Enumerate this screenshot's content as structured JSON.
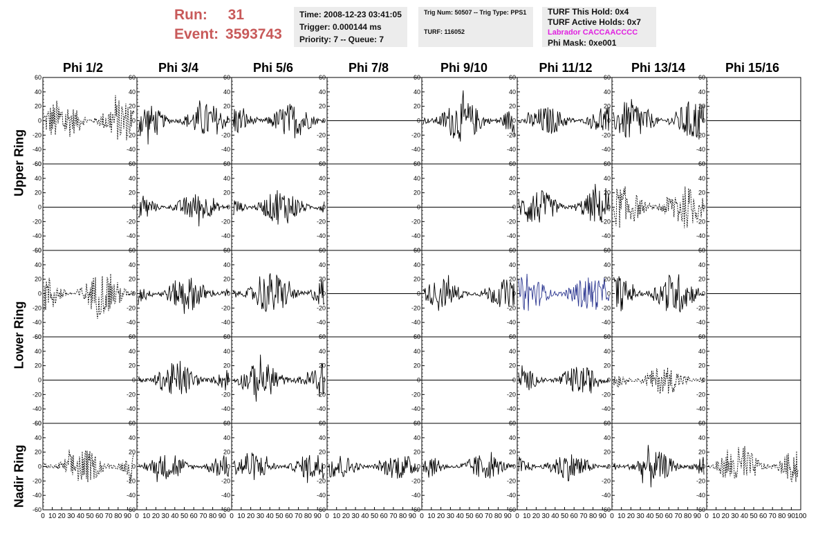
{
  "header": {
    "run_label": "Run:",
    "run_value": "31",
    "event_label": "Event:",
    "event_value": "3593743"
  },
  "info": {
    "time": "Time: 2008-12-23 03:41:05",
    "trigger": "Trigger: 0.000144 ms",
    "priority": "Priority: 7 -- Queue: 7",
    "trig_num": "Trig Num: 50507 -- Trig Type: PPS1",
    "turf": "TURF: 116052",
    "turf_this_hold": "TURF This Hold: 0x4",
    "turf_active_holds": "TURF Active Holds: 0x7",
    "labrador": "Labrador CACCAACCCC",
    "phi_mask": "Phi Mask: 0xe001"
  },
  "colors": {
    "header_red": "#c85a5a",
    "labrador_magenta": "#e020e0",
    "info_bg": "#ececec",
    "trace_black": "#000000",
    "trace_blue": "#2a3590"
  },
  "chart_data": {
    "type": "line",
    "columns": [
      "Phi 1/2",
      "Phi 3/4",
      "Phi 5/6",
      "Phi 7/8",
      "Phi 9/10",
      "Phi 11/12",
      "Phi 13/14",
      "Phi 15/16"
    ],
    "ring_labels": [
      "Upper Ring",
      "Lower Ring",
      "Nadir Ring"
    ],
    "ylim": [
      -60,
      60
    ],
    "yticks": [
      "60",
      "40",
      "20",
      "0",
      "-20",
      "-40",
      "-60"
    ],
    "xlim": [
      0,
      100
    ],
    "xticks": [
      "0",
      "10",
      "20",
      "30",
      "40",
      "50",
      "60",
      "70",
      "80",
      "90",
      "100"
    ],
    "panels": [
      [
        "dotted",
        "solid",
        "solid",
        "flat",
        "solid",
        "solid",
        "solid",
        "flat"
      ],
      [
        "flat",
        "solid",
        "solid",
        "flat",
        "solid",
        "solid",
        "dotted",
        "flat"
      ],
      [
        "dotted",
        "solid",
        "solid",
        "flat",
        "solid",
        "blue",
        "solid",
        "flat"
      ],
      [
        "flat",
        "solid",
        "solid",
        "flat",
        "solid",
        "solid",
        "dotted",
        "flat"
      ],
      [
        "dotted",
        "solid",
        "solid",
        "solid",
        "solid",
        "solid",
        "solid",
        "dotted"
      ]
    ],
    "amplitudes": [
      [
        30,
        25,
        25,
        0,
        30,
        20,
        30,
        0
      ],
      [
        0,
        20,
        25,
        0,
        0,
        25,
        30,
        0
      ],
      [
        30,
        25,
        30,
        0,
        20,
        25,
        30,
        0
      ],
      [
        0,
        25,
        25,
        0,
        0,
        20,
        20,
        0
      ],
      [
        25,
        18,
        20,
        18,
        18,
        20,
        22,
        28
      ]
    ]
  }
}
